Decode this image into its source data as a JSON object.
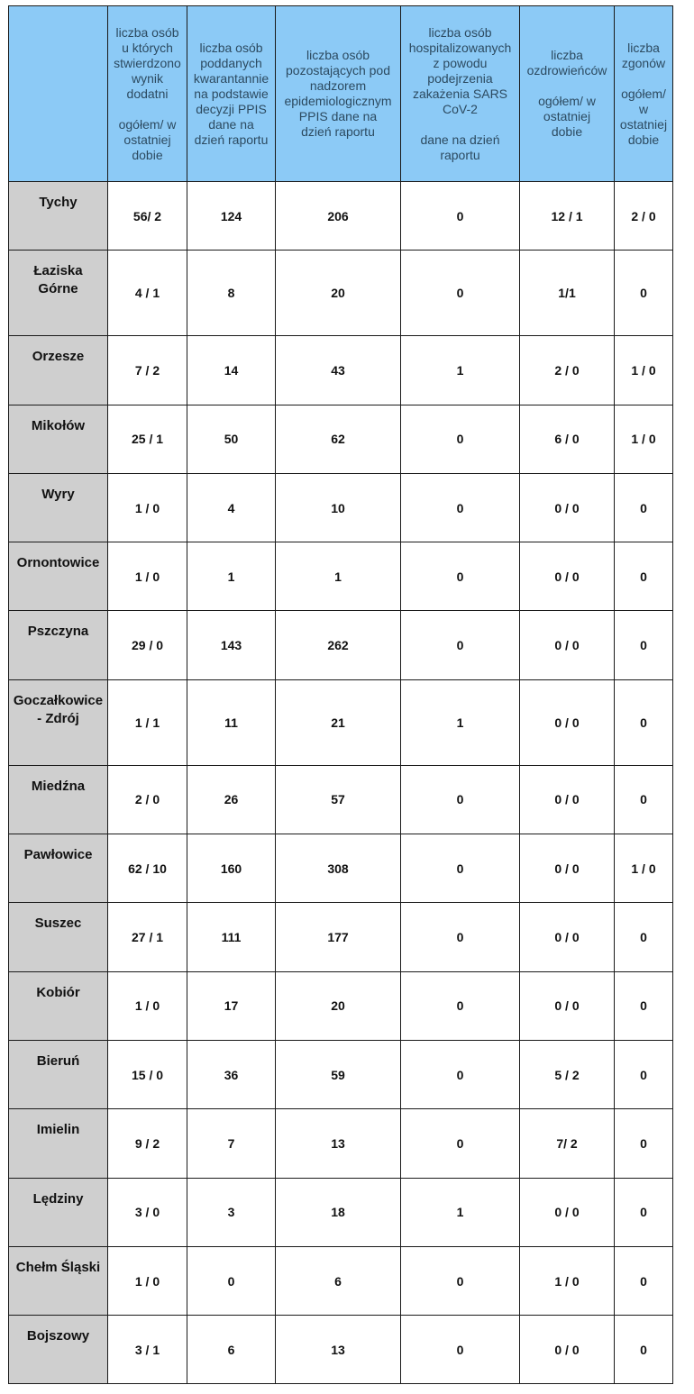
{
  "table": {
    "headers": [
      "",
      "liczba osób\nu których\nstwierdzono\nwynik\ndodatni\n\nogółem/ w\nostatniej\ndobie",
      "liczba osób\npoddanych\nkwarantannie\nna podstawie\ndecyzji PPIS\ndane na\ndzień raportu",
      "liczba osób\npozostających pod\nnadzorem\nepidemiologicznym\nPPIS dane na\ndzień raportu",
      "liczba osób\nhospitalizowanych\nz powodu\npodejrzenia\nzakażenia SARS\nCoV-2\n\ndane na dzień\nraportu",
      "liczba\nozdrowieńców\n\nogółem/ w\nostatniej\ndobie",
      "liczba\nzgonów\n\nogółem/\nw\nostatniej\ndobie"
    ],
    "rows": [
      {
        "name": "Tychy",
        "positive": "56/ 2",
        "quarantine": "124",
        "supervision": "206",
        "hospitalized": "0",
        "recovered": "12 / 1",
        "deaths": "2 / 0"
      },
      {
        "name": "Łaziska\nGórne",
        "positive": "4 / 1",
        "quarantine": "8",
        "supervision": "20",
        "hospitalized": "0",
        "recovered": "1/1",
        "deaths": "0"
      },
      {
        "name": "Orzesze",
        "positive": "7 / 2",
        "quarantine": "14",
        "supervision": "43",
        "hospitalized": "1",
        "recovered": "2 / 0",
        "deaths": "1 / 0"
      },
      {
        "name": "Mikołów",
        "positive": "25 / 1",
        "quarantine": "50",
        "supervision": "62",
        "hospitalized": "0",
        "recovered": "6 / 0",
        "deaths": "1 / 0"
      },
      {
        "name": "Wyry",
        "positive": "1 / 0",
        "quarantine": "4",
        "supervision": "10",
        "hospitalized": "0",
        "recovered": "0 / 0",
        "deaths": "0"
      },
      {
        "name": "Ornontowice",
        "positive": "1 / 0",
        "quarantine": "1",
        "supervision": "1",
        "hospitalized": "0",
        "recovered": "0 / 0",
        "deaths": "0"
      },
      {
        "name": "Pszczyna",
        "positive": "29 / 0",
        "quarantine": "143",
        "supervision": "262",
        "hospitalized": "0",
        "recovered": "0 / 0",
        "deaths": "0"
      },
      {
        "name": "Goczałkowice\n- Zdrój",
        "positive": "1 / 1",
        "quarantine": "11",
        "supervision": "21",
        "hospitalized": "1",
        "recovered": "0 / 0",
        "deaths": "0"
      },
      {
        "name": "Miedźna",
        "positive": "2 / 0",
        "quarantine": "26",
        "supervision": "57",
        "hospitalized": "0",
        "recovered": "0 / 0",
        "deaths": "0"
      },
      {
        "name": "Pawłowice",
        "positive": "62 / 10",
        "quarantine": "160",
        "supervision": "308",
        "hospitalized": "0",
        "recovered": "0 / 0",
        "deaths": "1 / 0"
      },
      {
        "name": "Suszec",
        "positive": "27 / 1",
        "quarantine": "111",
        "supervision": "177",
        "hospitalized": "0",
        "recovered": "0 / 0",
        "deaths": "0"
      },
      {
        "name": "Kobiór",
        "positive": "1 / 0",
        "quarantine": "17",
        "supervision": "20",
        "hospitalized": "0",
        "recovered": "0 / 0",
        "deaths": "0"
      },
      {
        "name": "Bieruń",
        "positive": "15 / 0",
        "quarantine": "36",
        "supervision": "59",
        "hospitalized": "0",
        "recovered": "5 / 2",
        "deaths": "0"
      },
      {
        "name": "Imielin",
        "positive": "9 / 2",
        "quarantine": "7",
        "supervision": "13",
        "hospitalized": "0",
        "recovered": "7/ 2",
        "deaths": "0"
      },
      {
        "name": "Lędziny",
        "positive": "3 / 0",
        "quarantine": "3",
        "supervision": "18",
        "hospitalized": "1",
        "recovered": "0 / 0",
        "deaths": "0"
      },
      {
        "name": "Chełm Śląski",
        "positive": "1 / 0",
        "quarantine": "0",
        "supervision": "6",
        "hospitalized": "0",
        "recovered": "1 / 0",
        "deaths": "0"
      },
      {
        "name": "Bojszowy",
        "positive": "3 / 1",
        "quarantine": "6",
        "supervision": "13",
        "hospitalized": "0",
        "recovered": "0 / 0",
        "deaths": "0"
      }
    ]
  },
  "colors": {
    "header_bg": "#8ccaf6",
    "name_col_bg": "#cfcfcf",
    "border": "#1a1a1a"
  }
}
